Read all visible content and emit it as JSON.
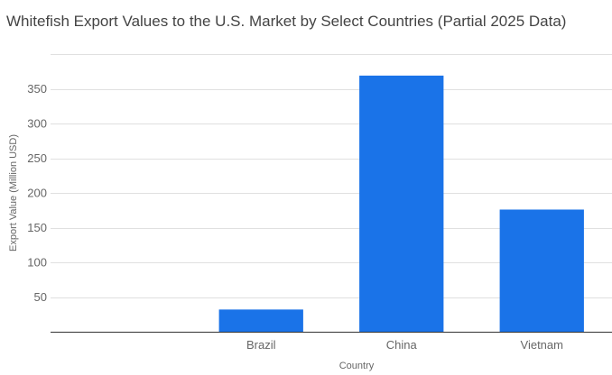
{
  "chart_data": {
    "type": "bar",
    "title": "Whitefish Export Values to the U.S. Market by Select Countries (Partial 2025 Data)",
    "xlabel": "Country",
    "ylabel": "Export Value (Million USD)",
    "categories": [
      "",
      "Brazil",
      "China",
      "Vietnam"
    ],
    "values": [
      0,
      32,
      369,
      176
    ],
    "ylim": [
      0,
      400
    ],
    "yticks": [
      50,
      100,
      150,
      200,
      250,
      300,
      350
    ],
    "grid": true,
    "legend": "none",
    "bar_color": "#1a73e8"
  }
}
